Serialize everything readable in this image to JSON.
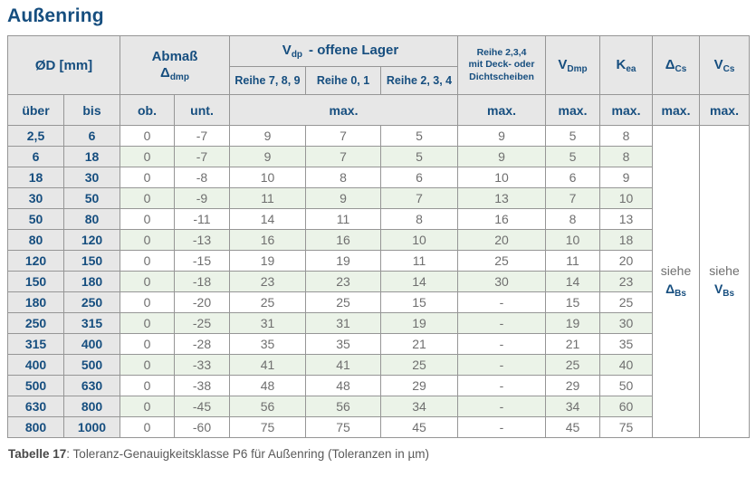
{
  "title": "Außenring",
  "colors": {
    "accent_blue": "#164e7f",
    "header_gray": "#e7e7e7",
    "row_green": "#ebf3e8",
    "grid_line": "#969696",
    "value_gray": "#6f6f6f"
  },
  "table": {
    "header": {
      "od": "ØD  [mm]",
      "abmass": {
        "line1": "Abmaß",
        "symbol": "Δ",
        "sub": "dmp"
      },
      "vdp": {
        "main": "V",
        "sub": "dp",
        "rest": "-  offene Lager"
      },
      "reihe789": "Reihe 7, 8, 9",
      "reihe01": "Reihe 0, 1",
      "reihe234": "Reihe 2, 3, 4",
      "deck_lines": [
        "Reihe 2,3,4",
        "mit Deck- oder",
        "Dichtscheiben"
      ],
      "vdmp": {
        "main": "V",
        "sub": "Dmp"
      },
      "kea": {
        "main": "K",
        "sub": "ea"
      },
      "dcs": {
        "main": "Δ",
        "sub": "Cs"
      },
      "vcs": {
        "main": "V",
        "sub": "Cs"
      },
      "uber": "über",
      "bis": "bis",
      "ob": "ob.",
      "unt": "unt.",
      "max": "max."
    },
    "siehe_dbs": {
      "word": "siehe",
      "symbol": "Δ",
      "sub": "Bs"
    },
    "siehe_vbs": {
      "word": "siehe",
      "symbol": "V",
      "sub": "Bs"
    },
    "rows": [
      [
        "2,5",
        "6",
        "0",
        "-7",
        "9",
        "7",
        "5",
        "9",
        "5",
        "8"
      ],
      [
        "6",
        "18",
        "0",
        "-7",
        "9",
        "7",
        "5",
        "9",
        "5",
        "8"
      ],
      [
        "18",
        "30",
        "0",
        "-8",
        "10",
        "8",
        "6",
        "10",
        "6",
        "9"
      ],
      [
        "30",
        "50",
        "0",
        "-9",
        "11",
        "9",
        "7",
        "13",
        "7",
        "10"
      ],
      [
        "50",
        "80",
        "0",
        "-11",
        "14",
        "11",
        "8",
        "16",
        "8",
        "13"
      ],
      [
        "80",
        "120",
        "0",
        "-13",
        "16",
        "16",
        "10",
        "20",
        "10",
        "18"
      ],
      [
        "120",
        "150",
        "0",
        "-15",
        "19",
        "19",
        "11",
        "25",
        "11",
        "20"
      ],
      [
        "150",
        "180",
        "0",
        "-18",
        "23",
        "23",
        "14",
        "30",
        "14",
        "23"
      ],
      [
        "180",
        "250",
        "0",
        "-20",
        "25",
        "25",
        "15",
        "-",
        "15",
        "25"
      ],
      [
        "250",
        "315",
        "0",
        "-25",
        "31",
        "31",
        "19",
        "-",
        "19",
        "30"
      ],
      [
        "315",
        "400",
        "0",
        "-28",
        "35",
        "35",
        "21",
        "-",
        "21",
        "35"
      ],
      [
        "400",
        "500",
        "0",
        "-33",
        "41",
        "41",
        "25",
        "-",
        "25",
        "40"
      ],
      [
        "500",
        "630",
        "0",
        "-38",
        "48",
        "48",
        "29",
        "-",
        "29",
        "50"
      ],
      [
        "630",
        "800",
        "0",
        "-45",
        "56",
        "56",
        "34",
        "-",
        "34",
        "60"
      ],
      [
        "800",
        "1000",
        "0",
        "-60",
        "75",
        "75",
        "45",
        "-",
        "45",
        "75"
      ]
    ]
  },
  "caption": {
    "label": "Tabelle 17",
    "text": ": Toleranz-Genauigkeitsklasse P6 für Außenring (Toleranzen in µm)"
  }
}
